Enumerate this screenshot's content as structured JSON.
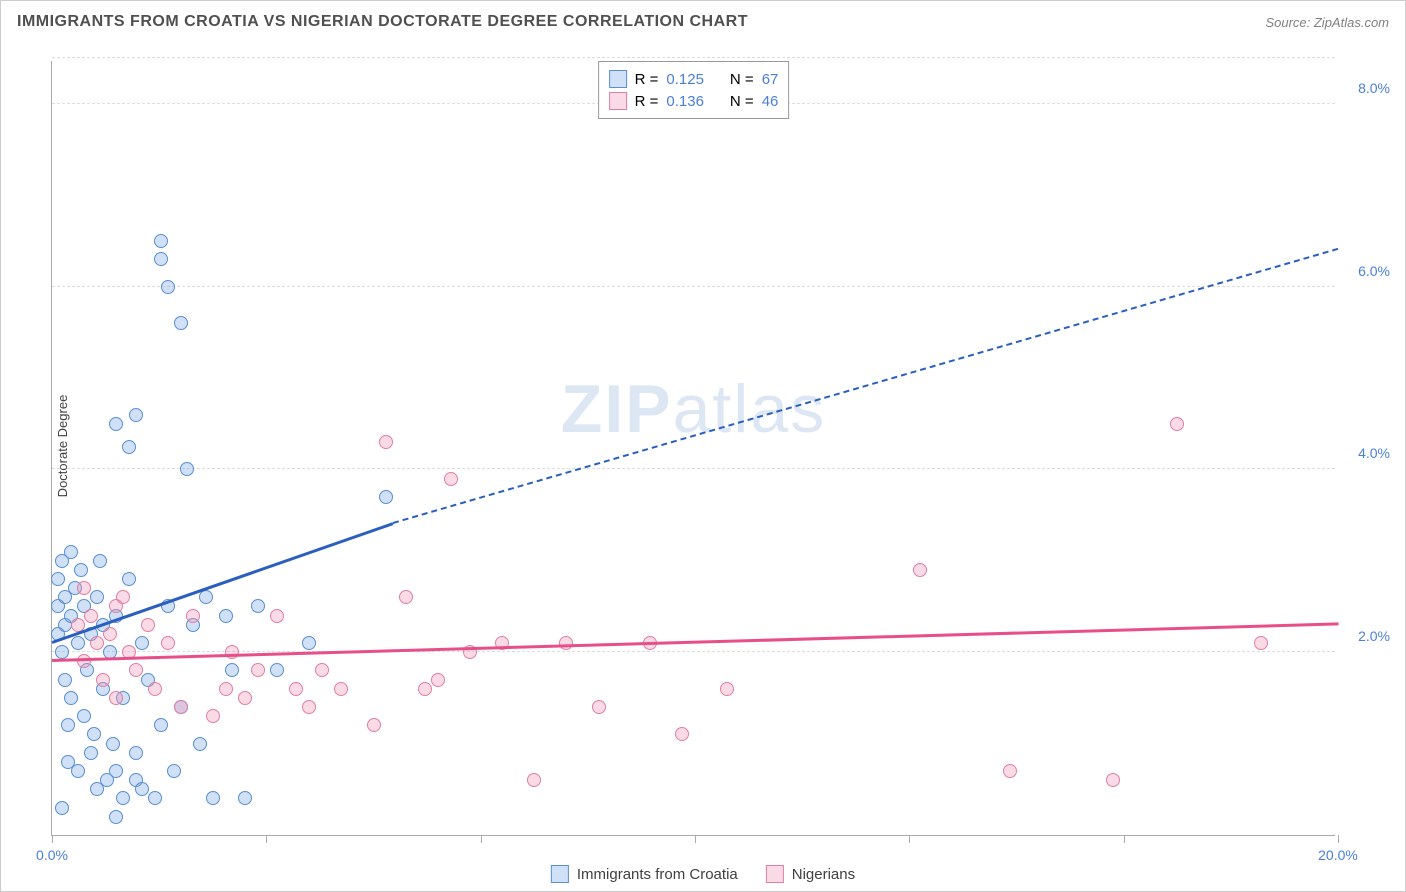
{
  "title": "IMMIGRANTS FROM CROATIA VS NIGERIAN DOCTORATE DEGREE CORRELATION CHART",
  "source": "Source: ZipAtlas.com",
  "y_axis_label": "Doctorate Degree",
  "watermark_bold": "ZIP",
  "watermark_light": "atlas",
  "chart": {
    "type": "scatter",
    "xlim": [
      0,
      20
    ],
    "ylim": [
      0,
      8.5
    ],
    "x_ticks": [
      0,
      20
    ],
    "x_tick_labels": [
      "0.0%",
      "20.0%"
    ],
    "x_tick_marks": [
      0,
      3.33,
      6.67,
      10,
      13.33,
      16.67,
      20
    ],
    "y_ticks": [
      2,
      4,
      6,
      8
    ],
    "y_tick_labels": [
      "2.0%",
      "4.0%",
      "6.0%",
      "8.0%"
    ],
    "grid_color": "#dddddd",
    "axis_color": "#aaaaaa",
    "background_color": "#ffffff",
    "y_tick_color": "#4a7fd8",
    "x_tick_color": "#4a7fd8",
    "series": [
      {
        "name": "Immigrants from Croatia",
        "marker_fill": "rgba(120,165,230,0.35)",
        "marker_stroke": "#5a8fd0",
        "marker_size": 14,
        "line_color": "#2a5fc0",
        "R": "0.125",
        "N": "67",
        "trend": {
          "x1": 0,
          "y1": 2.1,
          "x2": 5.3,
          "y2": 3.4,
          "dash_x2": 20,
          "dash_y2": 6.4
        },
        "points": [
          [
            0.1,
            2.2
          ],
          [
            0.1,
            2.5
          ],
          [
            0.1,
            2.8
          ],
          [
            0.15,
            3.0
          ],
          [
            0.15,
            2.0
          ],
          [
            0.2,
            1.7
          ],
          [
            0.2,
            2.3
          ],
          [
            0.2,
            2.6
          ],
          [
            0.25,
            1.2
          ],
          [
            0.25,
            0.8
          ],
          [
            0.3,
            3.1
          ],
          [
            0.3,
            2.4
          ],
          [
            0.3,
            1.5
          ],
          [
            0.35,
            2.7
          ],
          [
            0.4,
            2.1
          ],
          [
            0.4,
            0.7
          ],
          [
            0.45,
            2.9
          ],
          [
            0.5,
            1.3
          ],
          [
            0.5,
            2.5
          ],
          [
            0.55,
            1.8
          ],
          [
            0.6,
            2.2
          ],
          [
            0.6,
            0.9
          ],
          [
            0.65,
            1.1
          ],
          [
            0.7,
            2.6
          ],
          [
            0.7,
            0.5
          ],
          [
            0.75,
            3.0
          ],
          [
            0.8,
            1.6
          ],
          [
            0.8,
            2.3
          ],
          [
            0.85,
            0.6
          ],
          [
            0.9,
            2.0
          ],
          [
            0.95,
            1.0
          ],
          [
            1.0,
            2.4
          ],
          [
            1.0,
            0.7
          ],
          [
            1.0,
            0.2
          ],
          [
            1.1,
            1.5
          ],
          [
            1.1,
            0.4
          ],
          [
            1.2,
            2.8
          ],
          [
            1.2,
            4.25
          ],
          [
            1.3,
            4.6
          ],
          [
            1.3,
            0.6
          ],
          [
            1.3,
            0.9
          ],
          [
            1.4,
            2.1
          ],
          [
            1.4,
            0.5
          ],
          [
            1.5,
            1.7
          ],
          [
            1.6,
            0.4
          ],
          [
            1.7,
            6.5
          ],
          [
            1.7,
            6.3
          ],
          [
            1.7,
            1.2
          ],
          [
            1.8,
            6.0
          ],
          [
            1.8,
            2.5
          ],
          [
            1.9,
            0.7
          ],
          [
            2.0,
            5.6
          ],
          [
            2.0,
            1.4
          ],
          [
            2.1,
            4.0
          ],
          [
            2.2,
            2.3
          ],
          [
            2.3,
            1.0
          ],
          [
            2.4,
            2.6
          ],
          [
            2.5,
            0.4
          ],
          [
            2.7,
            2.4
          ],
          [
            2.8,
            1.8
          ],
          [
            3.0,
            0.4
          ],
          [
            3.2,
            2.5
          ],
          [
            3.5,
            1.8
          ],
          [
            4.0,
            2.1
          ],
          [
            5.2,
            3.7
          ],
          [
            1.0,
            4.5
          ],
          [
            0.15,
            0.3
          ]
        ]
      },
      {
        "name": "Nigerians",
        "marker_fill": "rgba(240,150,180,0.35)",
        "marker_stroke": "#e07fa5",
        "marker_size": 14,
        "line_color": "#e84f8a",
        "R": "0.136",
        "N": "46",
        "trend": {
          "x1": 0,
          "y1": 1.9,
          "x2": 20,
          "y2": 2.3
        },
        "points": [
          [
            0.4,
            2.3
          ],
          [
            0.5,
            1.9
          ],
          [
            0.6,
            2.4
          ],
          [
            0.7,
            2.1
          ],
          [
            0.8,
            1.7
          ],
          [
            0.9,
            2.2
          ],
          [
            1.0,
            2.5
          ],
          [
            1.0,
            1.5
          ],
          [
            1.2,
            2.0
          ],
          [
            1.3,
            1.8
          ],
          [
            1.5,
            2.3
          ],
          [
            1.6,
            1.6
          ],
          [
            1.8,
            2.1
          ],
          [
            2.0,
            1.4
          ],
          [
            2.2,
            2.4
          ],
          [
            2.5,
            1.3
          ],
          [
            2.7,
            1.6
          ],
          [
            2.8,
            2.0
          ],
          [
            3.0,
            1.5
          ],
          [
            3.2,
            1.8
          ],
          [
            3.5,
            2.4
          ],
          [
            3.8,
            1.6
          ],
          [
            4.0,
            1.4
          ],
          [
            4.2,
            1.8
          ],
          [
            4.5,
            1.6
          ],
          [
            5.0,
            1.2
          ],
          [
            5.2,
            4.3
          ],
          [
            5.5,
            2.6
          ],
          [
            5.8,
            1.6
          ],
          [
            6.0,
            1.7
          ],
          [
            6.2,
            3.9
          ],
          [
            6.5,
            2.0
          ],
          [
            7.0,
            2.1
          ],
          [
            7.5,
            0.6
          ],
          [
            8.0,
            2.1
          ],
          [
            8.5,
            1.4
          ],
          [
            9.3,
            2.1
          ],
          [
            9.8,
            1.1
          ],
          [
            10.5,
            1.6
          ],
          [
            13.5,
            2.9
          ],
          [
            14.9,
            0.7
          ],
          [
            16.5,
            0.6
          ],
          [
            17.5,
            4.5
          ],
          [
            18.8,
            2.1
          ],
          [
            1.1,
            2.6
          ],
          [
            0.5,
            2.7
          ]
        ]
      }
    ]
  },
  "legend_top": {
    "r_label": "R =",
    "n_label": "N =",
    "label_color": "#404040",
    "value_color": "#4a7fd8"
  },
  "legend_bottom": {
    "items": [
      "Immigrants from Croatia",
      "Nigerians"
    ]
  }
}
